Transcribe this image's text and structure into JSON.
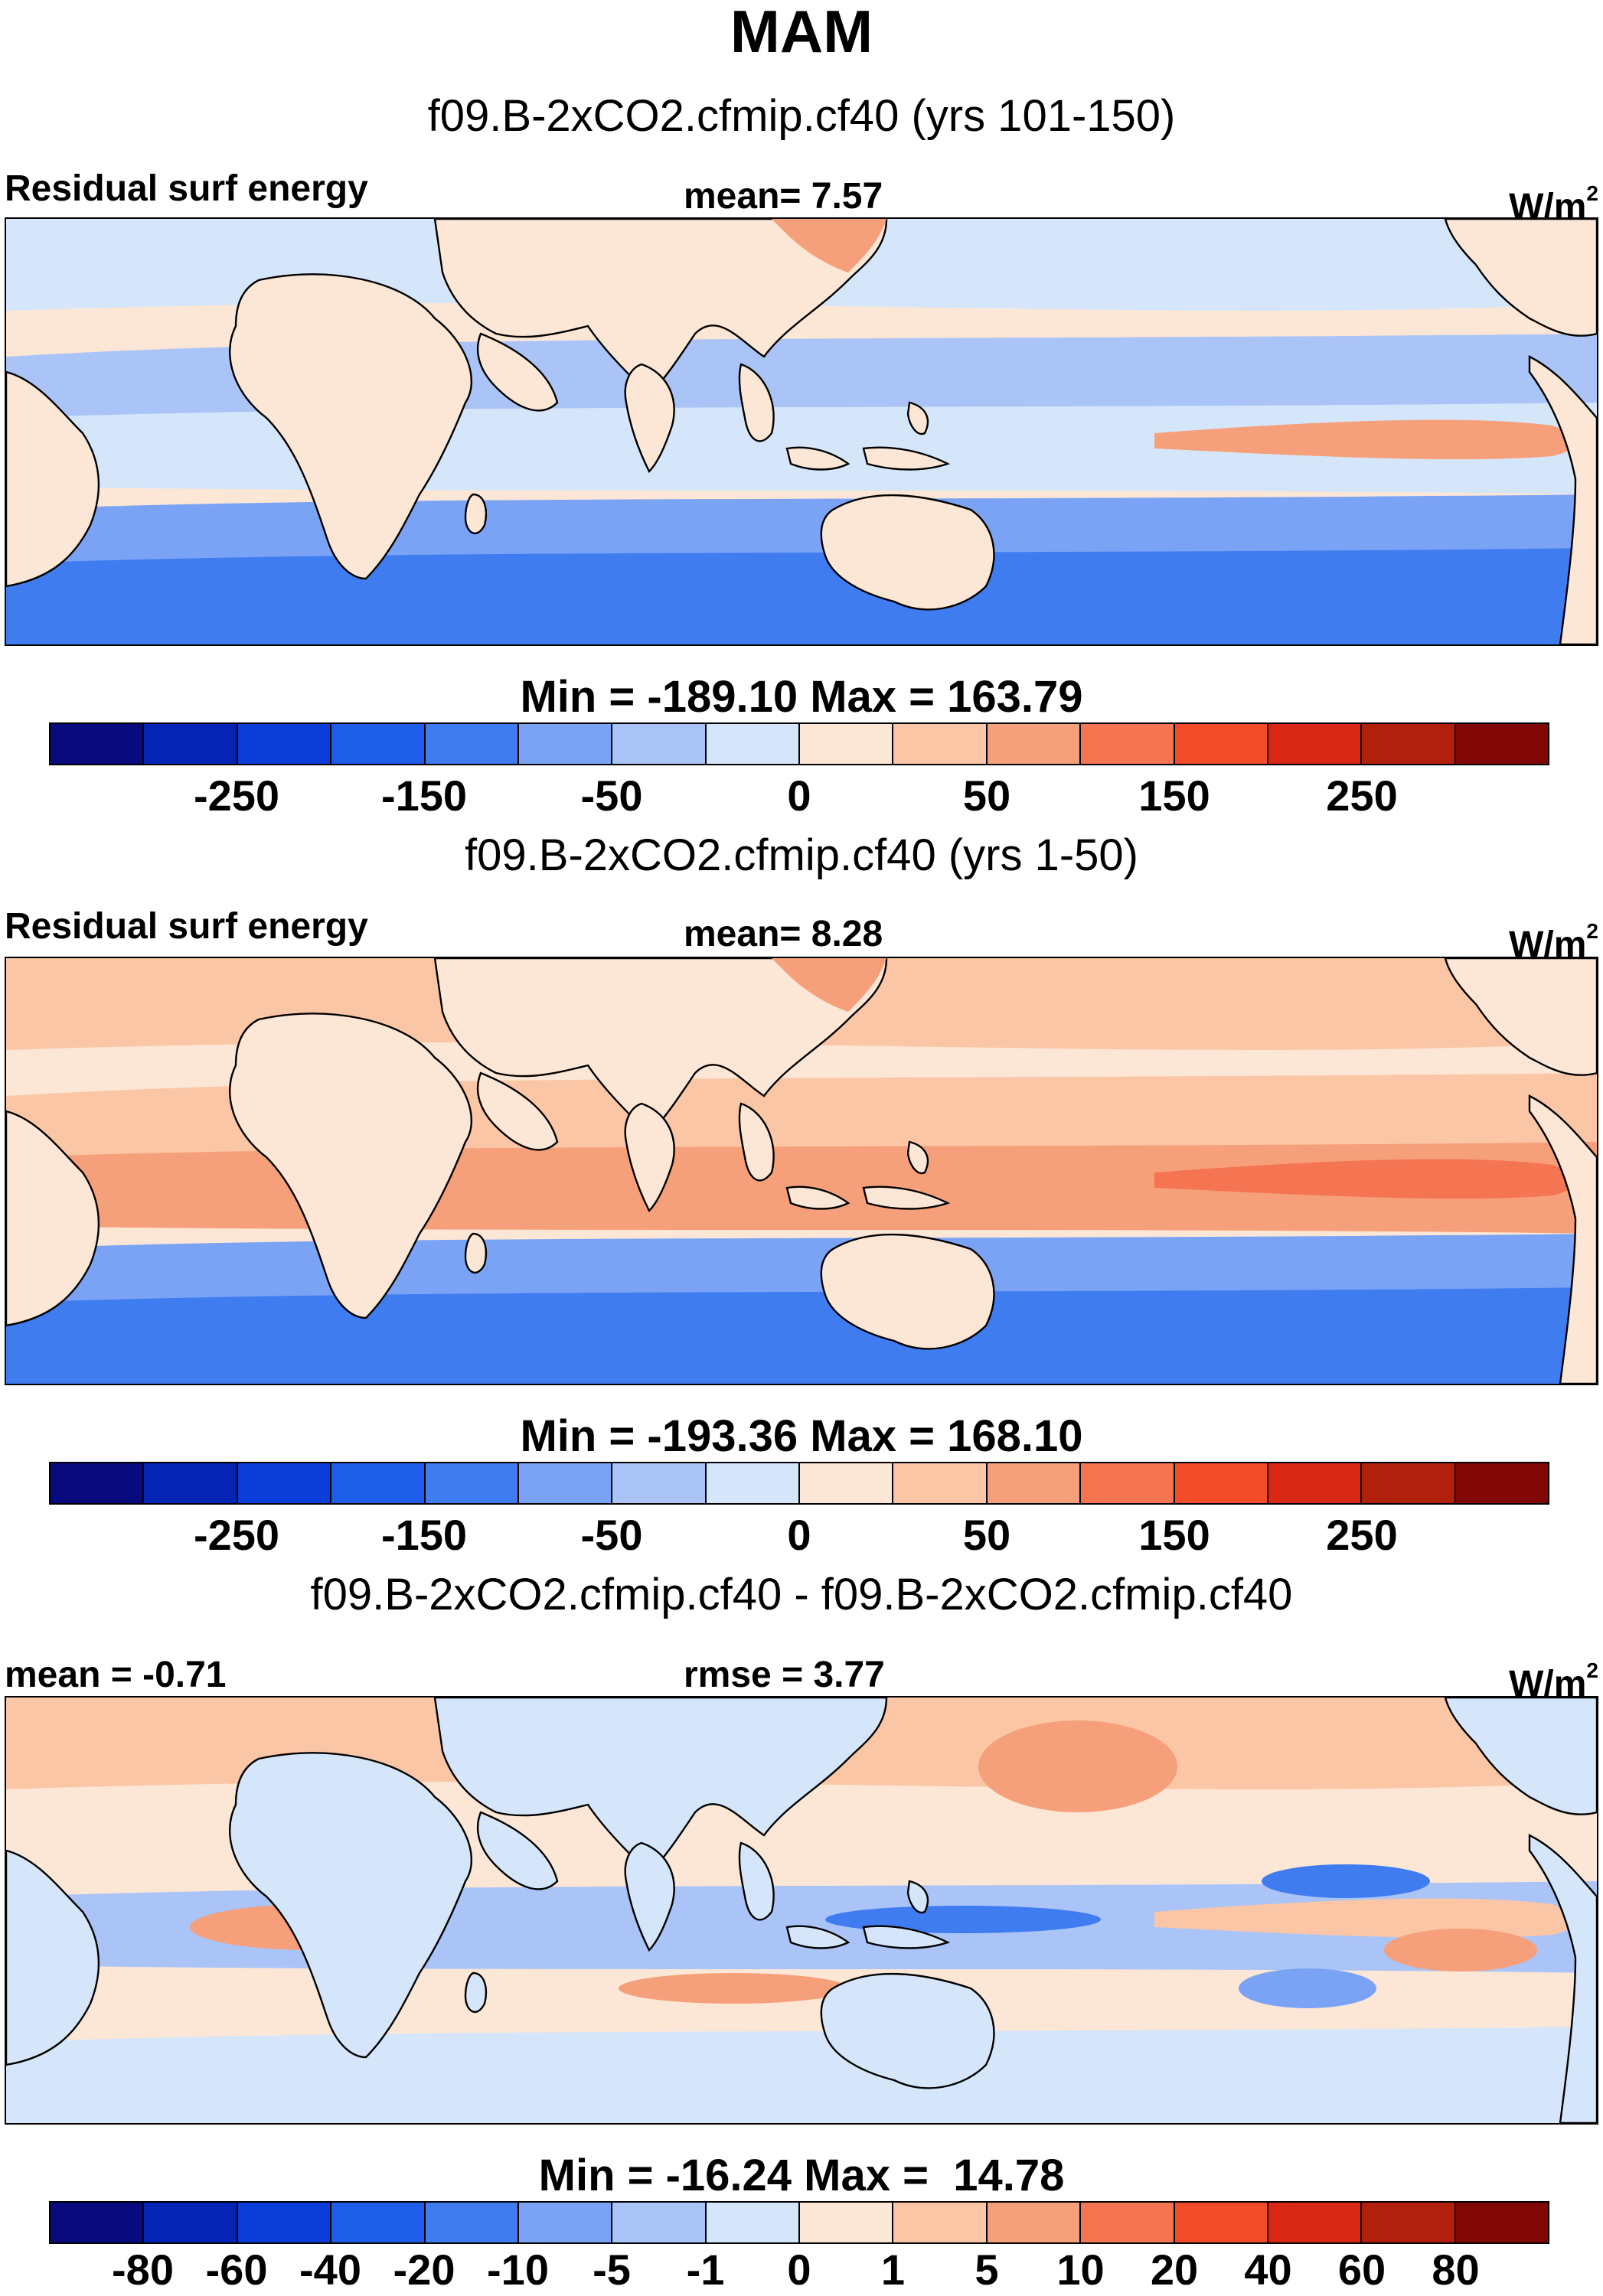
{
  "title": "MAM",
  "colors": {
    "palette": [
      "#0a0a7f",
      "#0524b6",
      "#0b3dd9",
      "#1e5de8",
      "#3f7cf0",
      "#7aa3f5",
      "#aac4f7",
      "#d6e6fa",
      "#fce6d6",
      "#fbc6a6",
      "#f6a07b",
      "#f57452",
      "#f24c28",
      "#d92715",
      "#b0200d",
      "#820808"
    ],
    "land": "#fce6d6"
  },
  "panels": [
    {
      "title": "f09.B-2xCO2.cfmip.cf40 (yrs 101-150)",
      "left_label": "Residual surf energy",
      "center_label": "mean=   7.57",
      "unit": "W/m",
      "unit_sup": "2",
      "min_max": "Min = -189.10 Max = 163.79",
      "ticks": [
        "-250",
        "-150",
        "-50",
        "0",
        "50",
        "150",
        "250"
      ],
      "map": {
        "tropical_band": 7,
        "subtropic_band": 6,
        "eastern_max": 10,
        "southern_ocean": 4,
        "mid_north": 7
      }
    },
    {
      "title": "f09.B-2xCO2.cfmip.cf40 (yrs 1-50)",
      "left_label": "Residual surf energy",
      "center_label": "mean=   8.28",
      "unit": "W/m",
      "unit_sup": "2",
      "min_max": "Min = -193.36 Max = 168.10",
      "ticks": [
        "-250",
        "-150",
        "-50",
        "0",
        "50",
        "150",
        "250"
      ],
      "map": {
        "tropical_band": 10,
        "subtropic_band": 9,
        "eastern_max": 11,
        "southern_ocean": 4,
        "mid_north": 9
      }
    },
    {
      "title": "f09.B-2xCO2.cfmip.cf40 - f09.B-2xCO2.cfmip.cf40",
      "left_label": "mean =  -0.71",
      "center_label": "rmse =   3.77",
      "unit": "W/m",
      "unit_sup": "2",
      "min_max": "Min = -16.24 Max =  14.78",
      "ticks": [
        "-80",
        "-60",
        "-40",
        "-20",
        "-10",
        "-5",
        "-1",
        "0",
        "1",
        "5",
        "10",
        "20",
        "40",
        "60",
        "80"
      ],
      "map": {
        "tropical_band": 6,
        "subtropic_band": 8,
        "eastern_max": 9,
        "southern_ocean": 7,
        "mid_north": 9
      }
    }
  ]
}
